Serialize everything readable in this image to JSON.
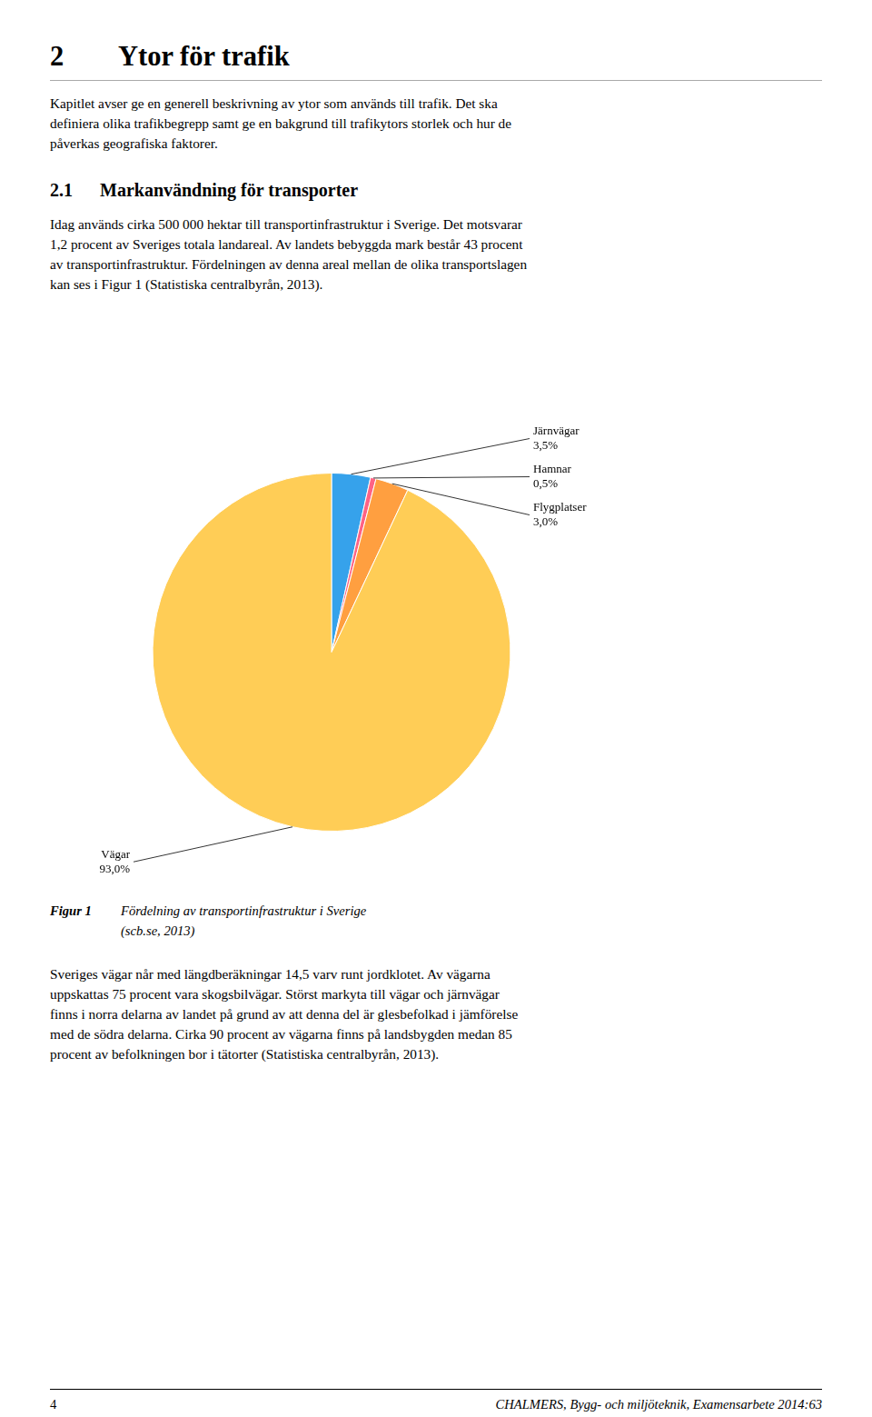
{
  "chart_data": {
    "type": "pie",
    "categories": [
      "Järnvägar",
      "Hamnar",
      "Flygplatser",
      "Vägar"
    ],
    "values": [
      3.5,
      0.5,
      3.0,
      93.0
    ],
    "value_labels": [
      "3,5%",
      "0,5%",
      "3,0%",
      "93,0%"
    ],
    "data_labels": true
  },
  "page": {
    "title_number": "2",
    "title_text": "Ytor för trafik",
    "intro_lines": [
      "Kapitlet avser ge en generell beskrivning av ytor som används till trafik. Det ska",
      "definiera olika trafikbegrepp samt ge en bakgrund till trafikytors storlek och hur de",
      "påverkas geografiska faktorer."
    ],
    "section_number": "2.1",
    "section_title": "Markanvändning för transporter",
    "section_lines": [
      "Idag används cirka 500 000 hektar till transportinfrastruktur i Sverige. Det motsvarar",
      "1,2 procent av Sveriges totala landareal. Av landets bebyggda mark består 43 procent",
      "av transportinfrastruktur. Fördelningen av denna areal mellan de olika transportslagen",
      "kan ses i Figur 1 (Statistiska centralbyrån, 2013)."
    ],
    "caption_label": "Figur 1",
    "caption_lines": [
      "Fördelning av transportinfrastruktur i Sverige",
      "(scb.se, 2013)"
    ],
    "after_lines": [
      "Sveriges vägar når med längdberäkningar 14,5 varv runt jordklotet. Av vägarna",
      "uppskattas 75 procent vara skogsbilvägar. Störst markyta till vägar och järnvägar",
      "finns i norra delarna av landet på grund av att denna del är glesbefolkad i jämförelse",
      "med de södra delarna. Cirka 90 procent av vägarna finns på landsbygden medan 85",
      "procent av befolkningen bor i tätorter (Statistiska centralbyrån, 2013)."
    ],
    "footer_left": "4",
    "footer_right": "CHALMERS, Bygg- och miljöteknik, Examensarbete 2014:63"
  }
}
